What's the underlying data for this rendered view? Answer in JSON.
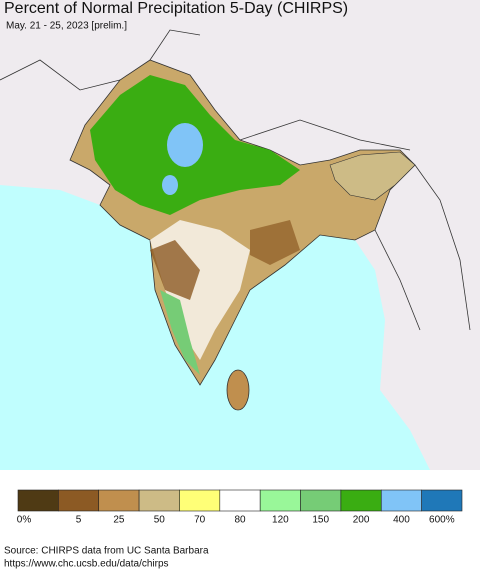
{
  "title": "Percent of Normal Precipitation 5-Day (CHIRPS)",
  "subtitle": "May. 21 - 25, 2023 [prelim.]",
  "legend": {
    "colors": [
      "#4f3a14",
      "#8c5a24",
      "#c08f4e",
      "#cdbb86",
      "#ffff77",
      "#ffffff",
      "#99f799",
      "#76cc76",
      "#3aad12",
      "#80c4f7",
      "#1f78b8"
    ],
    "labels": [
      "0%",
      "5",
      "25",
      "50",
      "70",
      "80",
      "120",
      "150",
      "200",
      "400",
      "600%"
    ]
  },
  "source": [
    "Source: CHIRPS data from UC Santa Barbara",
    "https://www.chc.ucsb.edu/data/chirps"
  ]
}
